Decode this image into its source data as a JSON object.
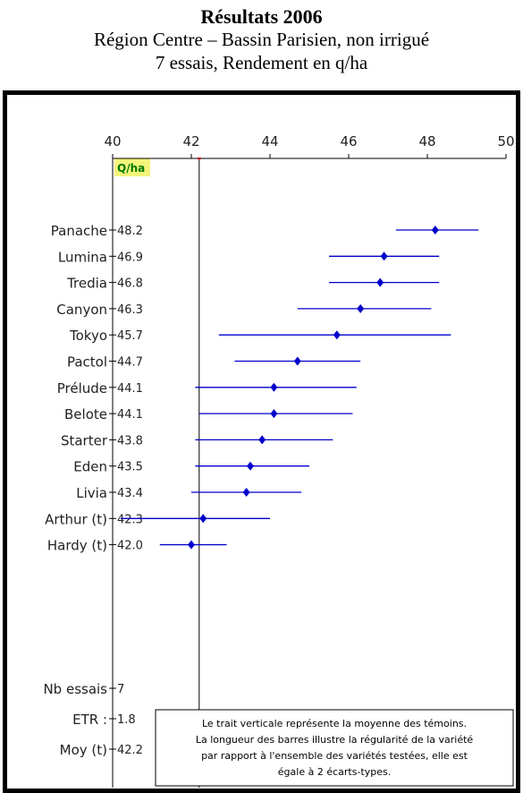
{
  "header": {
    "title": "Résultats 2006",
    "subtitle": "Région Centre – Bassin Parisien, non irrigué",
    "subtitle2": "7 essais, Rendement en q/ha"
  },
  "chart_data": {
    "type": "scatter",
    "subtype": "dot-with-error-bars",
    "unit_label": "Q/ha",
    "xlim": [
      40,
      50
    ],
    "x_ticks": [
      "40",
      "42",
      "44",
      "46",
      "48",
      "50"
    ],
    "reference_line": 42.2,
    "series_color": "#0000cc",
    "varieties": [
      {
        "name": "Panache",
        "value": 48.2,
        "label": "48.2",
        "low": 47.2,
        "high": 49.3
      },
      {
        "name": "Lumina",
        "value": 46.9,
        "label": "46.9",
        "low": 45.5,
        "high": 48.3
      },
      {
        "name": "Tredia",
        "value": 46.8,
        "label": "46.8",
        "low": 45.5,
        "high": 48.3
      },
      {
        "name": "Canyon",
        "value": 46.3,
        "label": "46.3",
        "low": 44.7,
        "high": 48.1
      },
      {
        "name": "Tokyo",
        "value": 45.7,
        "label": "45.7",
        "low": 42.7,
        "high": 48.6
      },
      {
        "name": "Pactol",
        "value": 44.7,
        "label": "44.7",
        "low": 43.1,
        "high": 46.3
      },
      {
        "name": "Prélude",
        "value": 44.1,
        "label": "44.1",
        "low": 42.1,
        "high": 46.2
      },
      {
        "name": "Belote",
        "value": 44.1,
        "label": "44.1",
        "low": 42.2,
        "high": 46.1
      },
      {
        "name": "Starter",
        "value": 43.8,
        "label": "43.8",
        "low": 42.1,
        "high": 45.6
      },
      {
        "name": "Eden",
        "value": 43.5,
        "label": "43.5",
        "low": 42.1,
        "high": 45.0
      },
      {
        "name": "Livia",
        "value": 43.4,
        "label": "43.4",
        "low": 42.0,
        "high": 44.8
      },
      {
        "name": "Arthur (t)",
        "value": 42.3,
        "label": "42.3",
        "low": 40.2,
        "high": 44.0
      },
      {
        "name": "Hardy  (t)",
        "value": 42.0,
        "label": "42.0",
        "low": 41.2,
        "high": 42.9
      }
    ],
    "stats": [
      {
        "name": "Nb essais",
        "label": "7"
      },
      {
        "name": "ETR :",
        "label": "1.8"
      },
      {
        "name": "Moy (t)",
        "label": "42.2"
      }
    ],
    "note": [
      "Le trait verticale représente la moyenne des témoins.",
      "La longueur des barres illustre la régularité de la variété",
      "par rapport à l'ensemble des variétés testées, elle est",
      "égale à 2 écarts-types."
    ]
  }
}
